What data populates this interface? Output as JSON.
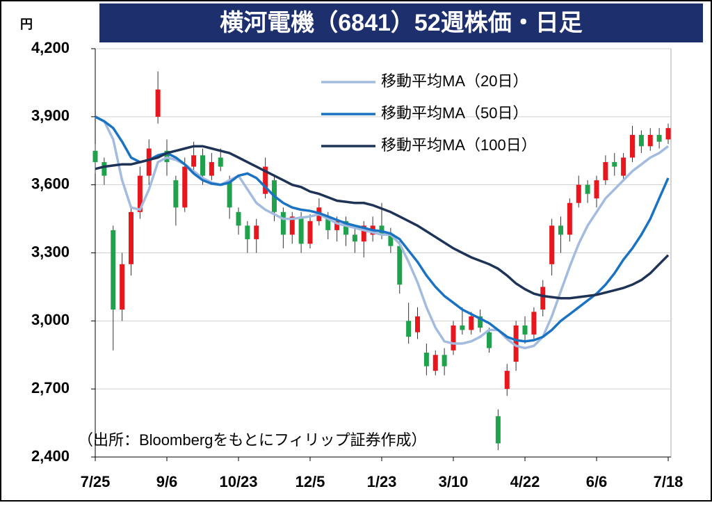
{
  "chart_data": {
    "type": "candlestick",
    "title": "横河電機（6841）52週株価・日足",
    "y_label": "円",
    "annotation": "（出所：Bloombergをもとにフィリップ証券作成）",
    "categories": [
      "7/25",
      null,
      null,
      null,
      null,
      null,
      null,
      null,
      "9/6",
      null,
      null,
      null,
      null,
      null,
      null,
      null,
      "10/23",
      null,
      null,
      null,
      null,
      null,
      null,
      null,
      "12/5",
      null,
      null,
      null,
      null,
      null,
      null,
      null,
      "1/23",
      null,
      null,
      null,
      null,
      null,
      null,
      null,
      "3/10",
      null,
      null,
      null,
      null,
      null,
      null,
      null,
      "4/22",
      null,
      null,
      null,
      null,
      null,
      null,
      null,
      "6/6",
      null,
      null,
      null,
      null,
      null,
      null,
      null,
      "7/18"
    ],
    "ylim": [
      2400,
      4200
    ],
    "yticks": [
      {
        "value": 2400,
        "label": "2,400"
      },
      {
        "value": 2700,
        "label": "2,700"
      },
      {
        "value": 3000,
        "label": "3,000"
      },
      {
        "value": 3300,
        "label": "3,300"
      },
      {
        "value": 3600,
        "label": "3,600"
      },
      {
        "value": 3900,
        "label": "3,900"
      },
      {
        "value": 4200,
        "label": "4,200"
      }
    ],
    "grid": true,
    "up_color": "#e8161d",
    "down_color": "#20a24c",
    "legend": "top-center",
    "candles": {
      "open": [
        3750,
        3700,
        3400,
        3050,
        3250,
        3480,
        3640,
        3900,
        3750,
        3620,
        3500,
        3680,
        3730,
        3640,
        3720,
        3620,
        3480,
        3420,
        3360,
        3560,
        3620,
        3480,
        3380,
        3460,
        3340,
        3440,
        3460,
        3400,
        3440,
        3380,
        3350,
        3380,
        3420,
        3380,
        3330,
        3000,
        2950,
        2860,
        2780,
        2850,
        2870,
        2980,
        2960,
        3020,
        2950,
        2580,
        2700,
        2820,
        2980,
        2940,
        3050,
        3250,
        3420,
        3380,
        3520,
        3600,
        3540,
        3620,
        3700,
        3640,
        3720,
        3820,
        3770,
        3820,
        3800
      ],
      "high": [
        3780,
        3720,
        3420,
        3300,
        3500,
        3680,
        3800,
        4100,
        3800,
        3640,
        3720,
        3790,
        3760,
        3740,
        3760,
        3640,
        3500,
        3440,
        3450,
        3720,
        3640,
        3500,
        3480,
        3480,
        3470,
        3540,
        3480,
        3460,
        3460,
        3420,
        3440,
        3460,
        3520,
        3410,
        3350,
        3080,
        3060,
        2900,
        2870,
        2880,
        3000,
        3060,
        3040,
        3050,
        2970,
        2610,
        2810,
        3000,
        3020,
        3060,
        3180,
        3450,
        3460,
        3540,
        3640,
        3620,
        3640,
        3730,
        3740,
        3740,
        3860,
        3840,
        3850,
        3850,
        3870
      ],
      "low": [
        3650,
        3600,
        2870,
        3000,
        3200,
        3450,
        3600,
        3870,
        3640,
        3420,
        3480,
        3650,
        3600,
        3620,
        3660,
        3450,
        3380,
        3300,
        3300,
        3540,
        3440,
        3320,
        3340,
        3300,
        3320,
        3420,
        3360,
        3350,
        3330,
        3300,
        3280,
        3350,
        3360,
        3300,
        3120,
        2900,
        2920,
        2760,
        2760,
        2760,
        2850,
        2940,
        2940,
        2950,
        2860,
        2430,
        2670,
        2780,
        2900,
        2920,
        3020,
        3200,
        3300,
        3350,
        3500,
        3520,
        3500,
        3600,
        3640,
        3620,
        3700,
        3740,
        3750,
        3760,
        3780
      ],
      "close": [
        3700,
        3640,
        3050,
        3250,
        3480,
        3640,
        3760,
        4020,
        3700,
        3500,
        3680,
        3730,
        3640,
        3700,
        3680,
        3500,
        3420,
        3360,
        3420,
        3680,
        3480,
        3380,
        3460,
        3340,
        3440,
        3500,
        3400,
        3440,
        3380,
        3350,
        3420,
        3420,
        3380,
        3330,
        3160,
        2930,
        3020,
        2800,
        2850,
        2800,
        2980,
        2960,
        3020,
        2970,
        2880,
        2460,
        2780,
        2980,
        2940,
        3040,
        3150,
        3420,
        3380,
        3520,
        3600,
        3560,
        3620,
        3700,
        3680,
        3720,
        3820,
        3770,
        3820,
        3790,
        3850
      ]
    },
    "series": [
      {
        "name": "移動平均MA（20日）",
        "color": "#a3bbdf",
        "values": [
          3900,
          3880,
          3800,
          3620,
          3500,
          3490,
          3580,
          3700,
          3720,
          3710,
          3690,
          3660,
          3630,
          3610,
          3600,
          3620,
          3640,
          3580,
          3520,
          3490,
          3470,
          3450,
          3450,
          3455,
          3460,
          3470,
          3450,
          3430,
          3420,
          3410,
          3400,
          3390,
          3380,
          3380,
          3340,
          3260,
          3170,
          3060,
          2970,
          2910,
          2900,
          2900,
          2910,
          2930,
          2960,
          2960,
          2920,
          2890,
          2880,
          2890,
          2930,
          3020,
          3130,
          3240,
          3340,
          3420,
          3480,
          3540,
          3580,
          3620,
          3660,
          3690,
          3720,
          3740,
          3770
        ]
      },
      {
        "name": "移動平均MA（50日）",
        "color": "#1a72c2",
        "values": [
          3900,
          3880,
          3850,
          3790,
          3720,
          3700,
          3710,
          3730,
          3740,
          3720,
          3690,
          3650,
          3620,
          3605,
          3600,
          3610,
          3640,
          3650,
          3630,
          3590,
          3550,
          3520,
          3500,
          3490,
          3485,
          3475,
          3460,
          3445,
          3430,
          3420,
          3410,
          3400,
          3395,
          3385,
          3360,
          3310,
          3260,
          3200,
          3150,
          3110,
          3080,
          3050,
          3030,
          3010,
          2990,
          2960,
          2930,
          2915,
          2910,
          2915,
          2930,
          2960,
          3000,
          3030,
          3060,
          3090,
          3120,
          3160,
          3210,
          3270,
          3320,
          3380,
          3450,
          3540,
          3630
        ]
      },
      {
        "name": "移動平均MA（100日）",
        "color": "#1f3356",
        "values": [
          3670,
          3680,
          3685,
          3690,
          3690,
          3700,
          3710,
          3720,
          3740,
          3750,
          3760,
          3770,
          3770,
          3760,
          3750,
          3740,
          3720,
          3700,
          3680,
          3660,
          3640,
          3620,
          3600,
          3590,
          3570,
          3560,
          3545,
          3530,
          3525,
          3520,
          3520,
          3510,
          3495,
          3480,
          3460,
          3440,
          3420,
          3395,
          3370,
          3345,
          3320,
          3300,
          3280,
          3265,
          3250,
          3230,
          3200,
          3165,
          3140,
          3120,
          3110,
          3105,
          3100,
          3100,
          3105,
          3110,
          3115,
          3125,
          3135,
          3145,
          3160,
          3180,
          3210,
          3250,
          3290
        ]
      }
    ]
  }
}
